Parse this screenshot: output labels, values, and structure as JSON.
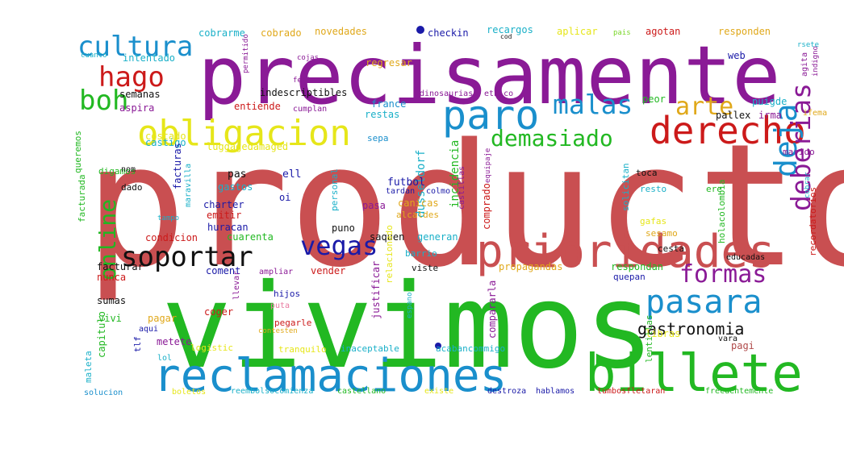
{
  "colors": {
    "red": "#c94f51",
    "green": "#22b822",
    "blue": "#1a8fcc",
    "purple": "#8a1a96",
    "yellow": "#e6e61a",
    "darkred": "#cc1a1a",
    "black": "#111111",
    "navy": "#1a1aa8",
    "cyan": "#1ab0c8",
    "lime": "#7ad62a",
    "orange": "#e0a81a",
    "pink": "#e87aa0",
    "brown": "#b04a4a"
  },
  "words": [
    {
      "text": "producto",
      "color": "red"
    },
    {
      "text": "vivimos",
      "color": "green"
    },
    {
      "text": "precisamente",
      "color": "purple"
    },
    {
      "text": "reclamaciones",
      "color": "blue"
    },
    {
      "text": "billete",
      "color": "green"
    },
    {
      "text": "prioridades",
      "color": "red"
    },
    {
      "text": "obligacion",
      "color": "yellow"
    },
    {
      "text": "derecho",
      "color": "darkred"
    },
    {
      "text": "paro",
      "color": "blue"
    },
    {
      "text": "pasara",
      "color": "blue"
    },
    {
      "text": "cultura",
      "color": "blue"
    },
    {
      "text": "hago",
      "color": "darkred"
    },
    {
      "text": "boh",
      "color": "green"
    },
    {
      "text": "malas",
      "color": "blue"
    },
    {
      "text": "arte",
      "color": "orange"
    },
    {
      "text": "demasiado",
      "color": "green"
    },
    {
      "text": "deja",
      "color": "blue"
    },
    {
      "text": "soportar",
      "color": "black"
    },
    {
      "text": "vegas",
      "color": "navy"
    },
    {
      "text": "formas",
      "color": "purple"
    },
    {
      "text": "deberias",
      "color": "purple"
    },
    {
      "text": "online",
      "color": "green"
    },
    {
      "text": "gastronomia",
      "color": "black"
    },
    {
      "text": "cobrarme",
      "color": "cyan"
    },
    {
      "text": "cobrado",
      "color": "orange"
    },
    {
      "text": "novedades",
      "color": "orange"
    },
    {
      "text": "checkin",
      "color": "navy"
    },
    {
      "text": "recargos",
      "color": "cyan"
    },
    {
      "text": "aplicar",
      "color": "yellow"
    },
    {
      "text": "pais",
      "color": "lime"
    },
    {
      "text": "agotan",
      "color": "darkred"
    },
    {
      "text": "responden",
      "color": "orange"
    },
    {
      "text": "intentado",
      "color": "cyan"
    },
    {
      "text": "cuanto",
      "color": "cyan"
    },
    {
      "text": "semanas",
      "color": "black"
    },
    {
      "text": "regresar",
      "color": "orange"
    },
    {
      "text": "web",
      "color": "navy"
    },
    {
      "text": "cojas",
      "color": "purple"
    },
    {
      "text": "feria",
      "color": "purple"
    },
    {
      "text": "permitido",
      "color": "purple"
    },
    {
      "text": "indescriptibles",
      "color": "black"
    },
    {
      "text": "dinosaurias",
      "color": "purple"
    },
    {
      "text": "etnico",
      "color": "purple"
    },
    {
      "text": "aspira",
      "color": "purple"
    },
    {
      "text": "entiende",
      "color": "darkred"
    },
    {
      "text": "cumplan",
      "color": "purple"
    },
    {
      "text": "france",
      "color": "blue"
    },
    {
      "text": "restas",
      "color": "cyan"
    },
    {
      "text": "peor",
      "color": "green"
    },
    {
      "text": "puigde",
      "color": "cyan"
    },
    {
      "text": "irma",
      "color": "purple"
    },
    {
      "text": "pallex",
      "color": "black"
    },
    {
      "text": "ifema",
      "color": "orange"
    },
    {
      "text": "indigno",
      "color": "purple"
    },
    {
      "text": "agita",
      "color": "purple"
    },
    {
      "text": "rsete",
      "color": "cyan"
    },
    {
      "text": "costado",
      "color": "yellow"
    },
    {
      "text": "castigo",
      "color": "cyan"
    },
    {
      "text": "luggagedamaged",
      "color": "yellow"
    },
    {
      "text": "sepa",
      "color": "blue"
    },
    {
      "text": "dusseldorf",
      "color": "cyan"
    },
    {
      "text": "incidencia",
      "color": "green"
    },
    {
      "text": "marido",
      "color": "purple"
    },
    {
      "text": "queremos",
      "color": "green"
    },
    {
      "text": "digamos",
      "color": "green"
    },
    {
      "text": "facturas",
      "color": "navy"
    },
    {
      "text": "pas",
      "color": "black"
    },
    {
      "text": "ell",
      "color": "navy"
    },
    {
      "text": "nom",
      "color": "black"
    },
    {
      "text": "dado",
      "color": "black"
    },
    {
      "text": "facturada",
      "color": "green"
    },
    {
      "text": "maravilla",
      "color": "cyan"
    },
    {
      "text": "gastos",
      "color": "cyan"
    },
    {
      "text": "charter",
      "color": "navy"
    },
    {
      "text": "futbol",
      "color": "navy"
    },
    {
      "text": "tardan",
      "color": "navy"
    },
    {
      "text": "colmo",
      "color": "navy"
    },
    {
      "text": "toca",
      "color": "black"
    },
    {
      "text": "resto",
      "color": "cyan"
    },
    {
      "text": "solicitan",
      "color": "cyan"
    },
    {
      "text": "ere",
      "color": "green"
    },
    {
      "text": "cobrar",
      "color": "cyan"
    },
    {
      "text": "tampo",
      "color": "cyan"
    },
    {
      "text": "emitir",
      "color": "darkred"
    },
    {
      "text": "oi",
      "color": "navy"
    },
    {
      "text": "personal",
      "color": "cyan"
    },
    {
      "text": "pasa",
      "color": "purple"
    },
    {
      "text": "canicas",
      "color": "orange"
    },
    {
      "text": "alcaldes",
      "color": "orange"
    },
    {
      "text": "gafas",
      "color": "yellow"
    },
    {
      "text": "holacolombia",
      "color": "green"
    },
    {
      "text": "comprado",
      "color": "darkred"
    },
    {
      "text": "huracan",
      "color": "navy"
    },
    {
      "text": "puno",
      "color": "black"
    },
    {
      "text": "condicion",
      "color": "darkred"
    },
    {
      "text": "cuarenta",
      "color": "green"
    },
    {
      "text": "saquen",
      "color": "black"
    },
    {
      "text": "generan",
      "color": "cyan"
    },
    {
      "text": "sesamo",
      "color": "orange"
    },
    {
      "text": "cesta",
      "color": "black"
    },
    {
      "text": "barrio",
      "color": "cyan"
    },
    {
      "text": "recordatorios",
      "color": "darkred"
    },
    {
      "text": "facturar",
      "color": "black"
    },
    {
      "text": "vender",
      "color": "darkred"
    },
    {
      "text": "viste",
      "color": "black"
    },
    {
      "text": "propagandas",
      "color": "orange"
    },
    {
      "text": "respondan",
      "color": "green"
    },
    {
      "text": "educadas",
      "color": "black"
    },
    {
      "text": "nunca",
      "color": "darkred"
    },
    {
      "text": "coment",
      "color": "navy"
    },
    {
      "text": "ampliar",
      "color": "purple"
    },
    {
      "text": "relacionado",
      "color": "yellow"
    },
    {
      "text": "quepan",
      "color": "navy"
    },
    {
      "text": "hijos",
      "color": "navy"
    },
    {
      "text": "llevar",
      "color": "purple"
    },
    {
      "text": "justificar",
      "color": "purple"
    },
    {
      "text": "sumas",
      "color": "black"
    },
    {
      "text": "puta",
      "color": "pink"
    },
    {
      "text": "compararla",
      "color": "purple"
    },
    {
      "text": "coger",
      "color": "darkred"
    },
    {
      "text": "espano",
      "color": "cyan"
    },
    {
      "text": "pagar",
      "color": "orange"
    },
    {
      "text": "pegarle",
      "color": "darkred"
    },
    {
      "text": "vivi",
      "color": "green"
    },
    {
      "text": "aqui",
      "color": "navy"
    },
    {
      "text": "contesten",
      "color": "orange"
    },
    {
      "text": "libras",
      "color": "yellow"
    },
    {
      "text": "vara",
      "color": "black"
    },
    {
      "text": "capitulo",
      "color": "green"
    },
    {
      "text": "tlf",
      "color": "navy"
    },
    {
      "text": "metete",
      "color": "purple"
    },
    {
      "text": "logistic",
      "color": "yellow"
    },
    {
      "text": "tranquilo",
      "color": "yellow"
    },
    {
      "text": "inaceptable",
      "color": "cyan"
    },
    {
      "text": "acabancommigo",
      "color": "cyan"
    },
    {
      "text": "pagi",
      "color": "brown"
    },
    {
      "text": "lentillas",
      "color": "green"
    },
    {
      "text": "maleta",
      "color": "cyan"
    },
    {
      "text": "lol",
      "color": "cyan"
    },
    {
      "text": "solucion",
      "color": "blue"
    },
    {
      "text": "boletos",
      "color": "yellow"
    },
    {
      "text": "reembolsocomienza",
      "color": "cyan"
    },
    {
      "text": "castellano",
      "color": "green"
    },
    {
      "text": "existe",
      "color": "yellow"
    },
    {
      "text": "destroza",
      "color": "navy"
    },
    {
      "text": "hablamos",
      "color": "navy"
    },
    {
      "text": "tumbosfletaran",
      "color": "darkred"
    },
    {
      "text": "frecuentemente",
      "color": "green"
    },
    {
      "text": "cod",
      "color": "black"
    },
    {
      "text": "equipaje",
      "color": "purple"
    },
    {
      "text": "castillas",
      "color": "purple"
    }
  ]
}
